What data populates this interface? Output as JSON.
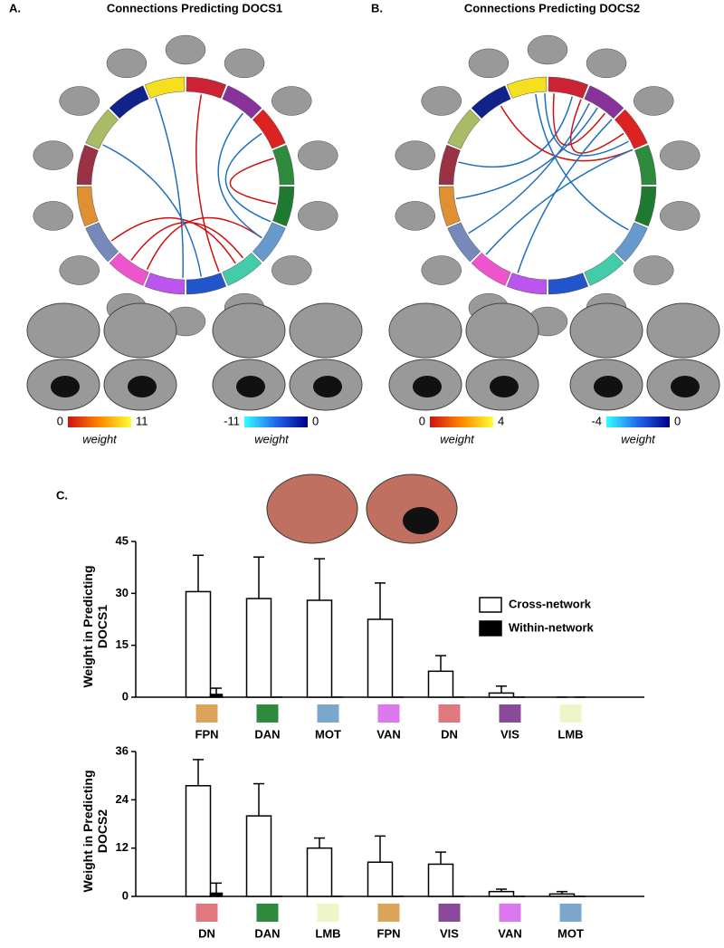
{
  "panels": {
    "a": {
      "letter": "A.",
      "title": "Connections Predicting DOCS1",
      "pos_min": "0",
      "pos_max": "11",
      "pos_label": "weight",
      "neg_min": "-11",
      "neg_max": "0",
      "neg_label": "weight"
    },
    "b": {
      "letter": "B.",
      "title": "Connections Predicting DOCS2",
      "pos_min": "0",
      "pos_max": "4",
      "pos_label": "weight",
      "neg_min": "-4",
      "neg_max": "0",
      "neg_label": "weight"
    },
    "c": {
      "letter": "C."
    }
  },
  "chart_data": [
    {
      "type": "bar",
      "y_label": "Weight in Predicting DOCS1",
      "categories": [
        "FPN",
        "DAN",
        "MOT",
        "VAN",
        "DN",
        "VIS",
        "LMB"
      ],
      "category_colors": [
        "#dca45a",
        "#2e8b3e",
        "#7ba7cc",
        "#dd77ee",
        "#e07880",
        "#8a4a9a",
        "#eef5c8"
      ],
      "series": [
        {
          "name": "Cross-network",
          "color": "#ffffff",
          "values": [
            30.5,
            28.5,
            28,
            22.5,
            7.5,
            1.2,
            0
          ],
          "errors": [
            10.5,
            12,
            12,
            10.5,
            4.5,
            2,
            0
          ]
        },
        {
          "name": "Within-network",
          "color": "#000000",
          "values": [
            0.8,
            0,
            0,
            0,
            0,
            0,
            0
          ],
          "errors": [
            1.8,
            0,
            0,
            0,
            0,
            0,
            0
          ]
        }
      ],
      "ylim": [
        0,
        45
      ],
      "yticks": [
        0,
        15,
        30,
        45
      ],
      "legend": "upper right"
    },
    {
      "type": "bar",
      "y_label": "Weight in Predicting DOCS2",
      "categories": [
        "DN",
        "DAN",
        "LMB",
        "FPN",
        "VIS",
        "VAN",
        "MOT"
      ],
      "category_colors": [
        "#e07880",
        "#2e8b3e",
        "#eef5c8",
        "#dca45a",
        "#8a4a9a",
        "#dd77ee",
        "#7ba7cc"
      ],
      "series": [
        {
          "color": "#ffffff",
          "values": [
            27.5,
            20,
            12,
            8.5,
            8,
            1.2,
            0.6
          ],
          "errors": [
            6.5,
            8,
            2.5,
            6.5,
            3,
            0.6,
            0.6
          ]
        },
        {
          "color": "#000000",
          "values": [
            0.8,
            0,
            0,
            0,
            0,
            0,
            0
          ],
          "errors": [
            2.5,
            0,
            0,
            0,
            0,
            0,
            0
          ]
        }
      ],
      "ylim": [
        0,
        36
      ],
      "yticks": [
        0,
        12,
        24,
        36
      ]
    }
  ]
}
